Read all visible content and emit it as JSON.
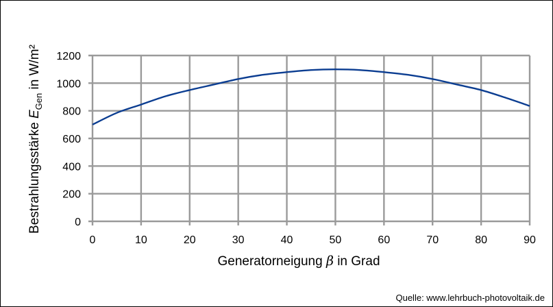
{
  "chart_data": {
    "type": "line",
    "xlabel": {
      "main": "Generatorneigung ",
      "symbol": "β",
      "rest": " in Grad"
    },
    "ylabel": {
      "main": "Bestrahlungsstärke ",
      "symbol": "E",
      "sub": "Gen",
      "rest": " in W/m²"
    },
    "xlim": [
      0,
      90
    ],
    "ylim": [
      0,
      1200
    ],
    "x_ticks": [
      0,
      10,
      20,
      30,
      40,
      50,
      60,
      70,
      80,
      90
    ],
    "y_ticks": [
      0,
      200,
      400,
      600,
      800,
      1000,
      1200
    ],
    "grid": true,
    "line_color": "#0b3d91",
    "grid_color": "#9a9a9a",
    "series": [
      {
        "x": [
          0,
          5,
          10,
          15,
          20,
          25,
          30,
          35,
          40,
          45,
          50,
          55,
          60,
          65,
          70,
          75,
          80,
          85,
          90
        ],
        "values": [
          700,
          785,
          845,
          905,
          950,
          990,
          1030,
          1060,
          1080,
          1095,
          1100,
          1095,
          1080,
          1060,
          1030,
          990,
          950,
          895,
          835
        ]
      }
    ]
  },
  "source": "Quelle: www.lehrbuch-photovoltaik.de"
}
